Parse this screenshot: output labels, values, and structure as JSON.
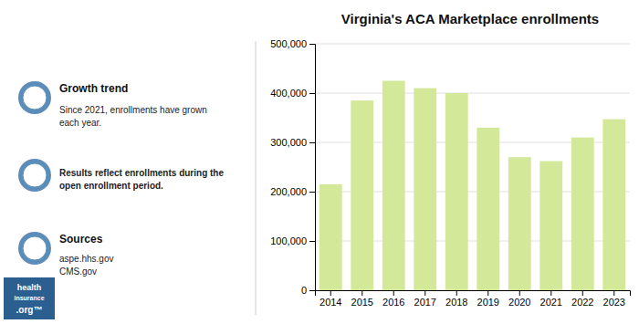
{
  "chart_data": {
    "type": "bar",
    "title": "Virginia's ACA Marketplace enrollments",
    "categories": [
      "2014",
      "2015",
      "2016",
      "2017",
      "2018",
      "2019",
      "2020",
      "2021",
      "2022",
      "2023"
    ],
    "values": [
      215000,
      385000,
      425000,
      410000,
      400000,
      330000,
      270000,
      262000,
      310000,
      347000
    ],
    "color": "#d4e89a",
    "ylim": [
      0,
      500000
    ],
    "yticks": [
      0,
      {
        "value": 100000,
        "label": "100,000"
      },
      {
        "value": 200000,
        "label": "200,000"
      },
      {
        "value": 300000,
        "label": "300,000"
      },
      {
        "value": 400000,
        "label": "400,000"
      },
      {
        "value": 500000,
        "label": "500,000"
      }
    ],
    "grid": true,
    "annotations": [
      "Growth trend",
      "Since 2021, enrollments have grown\neach year.",
      "Results reflect enrollments during the\nopen enrollment period.",
      "Sources",
      "aspe.hhs.gov\nCMS.gov",
      "health",
      "insurance",
      ".org™"
    ]
  }
}
